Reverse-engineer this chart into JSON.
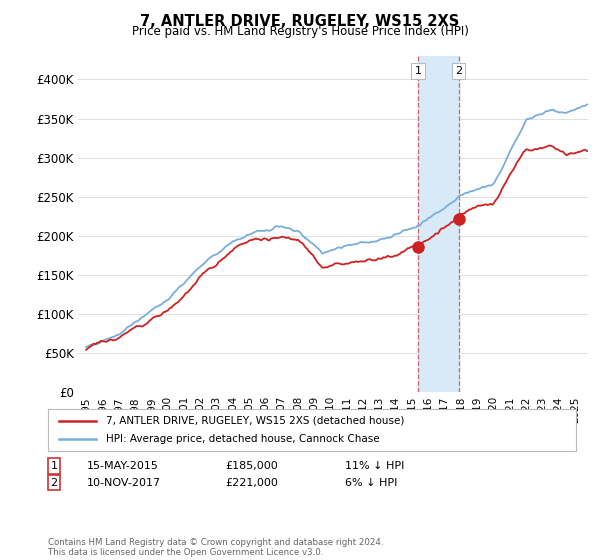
{
  "title": "7, ANTLER DRIVE, RUGELEY, WS15 2XS",
  "subtitle": "Price paid vs. HM Land Registry's House Price Index (HPI)",
  "ylabel_ticks": [
    "£0",
    "£50K",
    "£100K",
    "£150K",
    "£200K",
    "£250K",
    "£300K",
    "£350K",
    "£400K"
  ],
  "ytick_values": [
    0,
    50000,
    100000,
    150000,
    200000,
    250000,
    300000,
    350000,
    400000
  ],
  "ylim": [
    0,
    430000
  ],
  "xlim_start": 1994.5,
  "xlim_end": 2025.8,
  "hpi_color": "#7aaddc",
  "price_color": "#cc2222",
  "shade_color": "#d8eaf8",
  "transaction1_date": 2015.37,
  "transaction1_price": 185000,
  "transaction2_date": 2017.87,
  "transaction2_price": 221000,
  "legend1": "7, ANTLER DRIVE, RUGELEY, WS15 2XS (detached house)",
  "legend2": "HPI: Average price, detached house, Cannock Chase",
  "note1_label": "1",
  "note1_date": "15-MAY-2015",
  "note1_price": "£185,000",
  "note1_pct": "11% ↓ HPI",
  "note2_label": "2",
  "note2_date": "10-NOV-2017",
  "note2_price": "£221,000",
  "note2_pct": "6% ↓ HPI",
  "footer": "Contains HM Land Registry data © Crown copyright and database right 2024.\nThis data is licensed under the Open Government Licence v3.0.",
  "background_color": "#ffffff",
  "grid_color": "#e0e0e0"
}
